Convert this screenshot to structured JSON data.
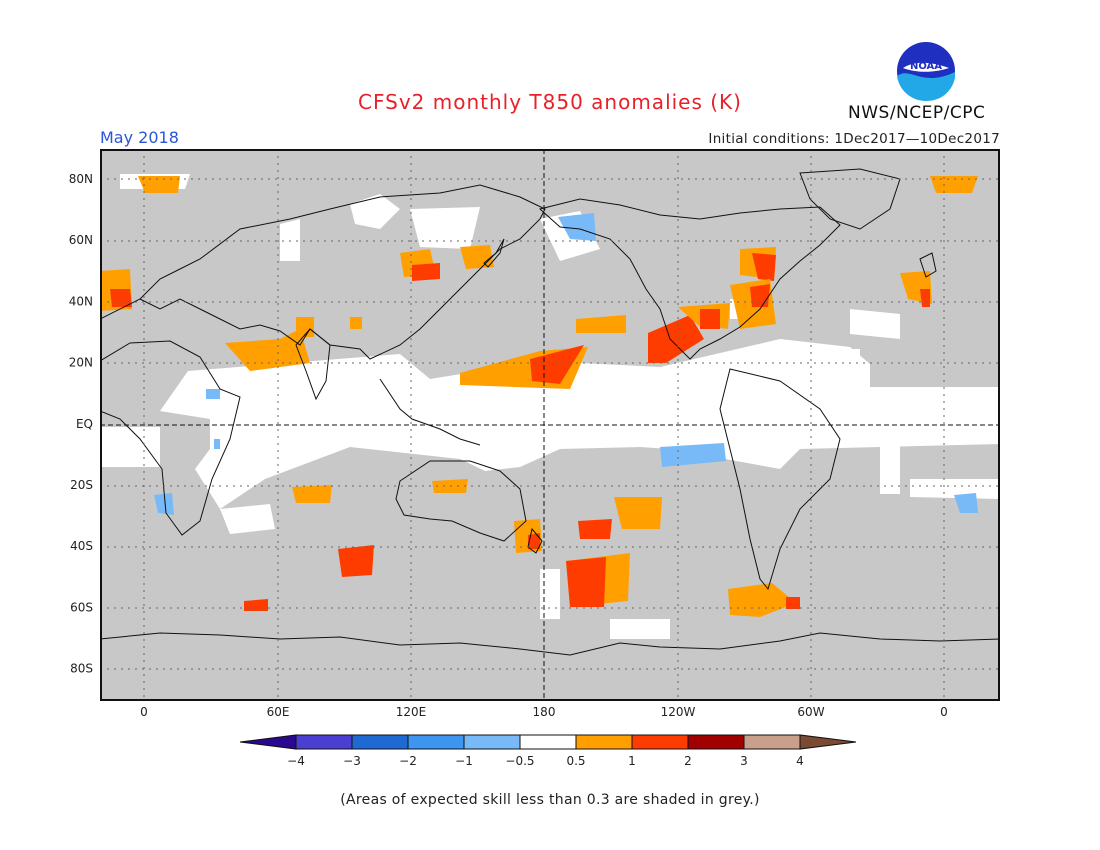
{
  "title": "CFSv2 monthly T850 anomalies (K)",
  "period": "May 2018",
  "initial_conditions": "Initial conditions: 1Dec2017—10Dec2017",
  "agency": "NWS/NCEP/CPC",
  "logo": {
    "icon": "noaa-logo",
    "text": "NOAA"
  },
  "footnote": "(Areas of expected skill less than 0.3 are shaded in grey.)",
  "map": {
    "projection": "equirectangular",
    "center_longitude": 180,
    "lat_ticks": [
      "80N",
      "60N",
      "40N",
      "20N",
      "EQ",
      "20S",
      "40S",
      "60S",
      "80S"
    ],
    "lon_ticks": [
      "0",
      "60E",
      "120E",
      "180",
      "120W",
      "60W",
      "0"
    ],
    "grey_color": "#c8c8c8",
    "skill_masked_color": "#c8c8c8"
  },
  "colorbar": {
    "labels": [
      "−4",
      "−3",
      "−2",
      "−1",
      "−0.5",
      "0.5",
      "1",
      "2",
      "3",
      "4"
    ],
    "colors": [
      "#2a0890",
      "#4a3fd0",
      "#1e69d2",
      "#3c96f0",
      "#78b9f8",
      "#ffffff",
      "#ffa000",
      "#ff3c00",
      "#a00000",
      "#c8a08c",
      "#7a4a32"
    ]
  }
}
